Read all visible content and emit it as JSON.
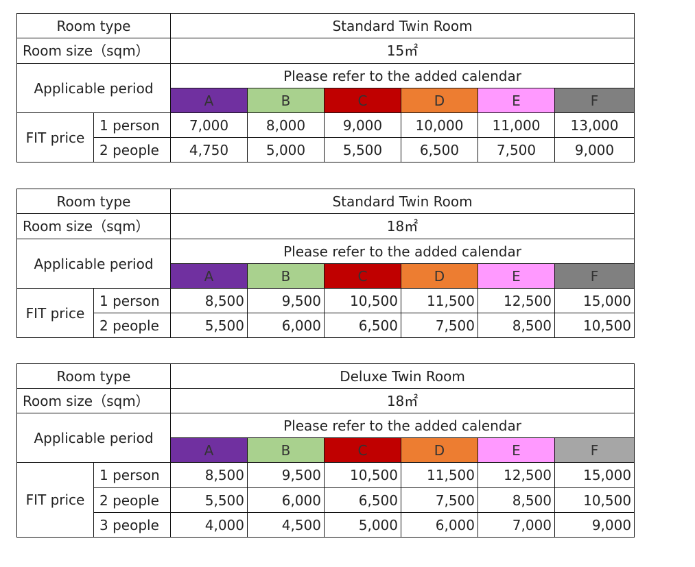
{
  "tables": [
    {
      "room_type_label": "Room type",
      "room_type": "Standard Twin Room",
      "room_size_label": "Room size（sqm）",
      "room_size": "15㎡",
      "period_label": "Applicable period",
      "period_note": "Please refer to the added calendar",
      "periods": [
        {
          "label": "A",
          "color": "#7030a0"
        },
        {
          "label": "B",
          "color": "#a9d18e"
        },
        {
          "label": "C",
          "color": "#c00000"
        },
        {
          "label": "D",
          "color": "#ed7d31"
        },
        {
          "label": "E",
          "color": "#ff99ff"
        },
        {
          "label": "F",
          "color": "#808080"
        }
      ],
      "price_label": "FIT price",
      "rows": [
        {
          "occupancy": "1 person",
          "prices": [
            "7,000",
            "8,000",
            "9,000",
            "10,000",
            "11,000",
            "13,000"
          ]
        },
        {
          "occupancy": "2 people",
          "prices": [
            "4,750",
            "5,000",
            "5,500",
            "6,500",
            "7,500",
            "9,000"
          ]
        }
      ]
    },
    {
      "room_type_label": "Room type",
      "room_type": "Standard Twin Room",
      "room_size_label": "Room size（sqm）",
      "room_size": "18㎡",
      "period_label": "Applicable period",
      "period_note": "Please refer to the added calendar",
      "periods": [
        {
          "label": "A",
          "color": "#7030a0"
        },
        {
          "label": "B",
          "color": "#a9d18e"
        },
        {
          "label": "C",
          "color": "#c00000"
        },
        {
          "label": "D",
          "color": "#ed7d31"
        },
        {
          "label": "E",
          "color": "#ff99ff"
        },
        {
          "label": "F",
          "color": "#808080"
        }
      ],
      "price_label": "FIT price",
      "rows": [
        {
          "occupancy": "1 person",
          "prices": [
            "8,500",
            "9,500",
            "10,500",
            "11,500",
            "12,500",
            "15,000"
          ]
        },
        {
          "occupancy": "2 people",
          "prices": [
            "5,500",
            "6,000",
            "6,500",
            "7,500",
            "8,500",
            "10,500"
          ]
        }
      ]
    },
    {
      "room_type_label": "Room type",
      "room_type": "Deluxe Twin Room",
      "room_size_label": "Room size（sqm）",
      "room_size": "18㎡",
      "period_label": "Applicable period",
      "period_note": "Please refer to the added calendar",
      "periods": [
        {
          "label": "A",
          "color": "#7030a0"
        },
        {
          "label": "B",
          "color": "#a9d18e"
        },
        {
          "label": "C",
          "color": "#c00000"
        },
        {
          "label": "D",
          "color": "#ed7d31"
        },
        {
          "label": "E",
          "color": "#ff99ff"
        },
        {
          "label": "F",
          "color": "#a6a6a6"
        }
      ],
      "price_label": "FIT price",
      "rows": [
        {
          "occupancy": "1 person",
          "prices": [
            "8,500",
            "9,500",
            "10,500",
            "11,500",
            "12,500",
            "15,000"
          ]
        },
        {
          "occupancy": "2 people",
          "prices": [
            "5,500",
            "6,000",
            "6,500",
            "7,500",
            "8,500",
            "10,500"
          ]
        },
        {
          "occupancy": "3 people",
          "prices": [
            "4,000",
            "4,500",
            "5,000",
            "6,000",
            "7,000",
            "9,000"
          ]
        }
      ]
    }
  ]
}
